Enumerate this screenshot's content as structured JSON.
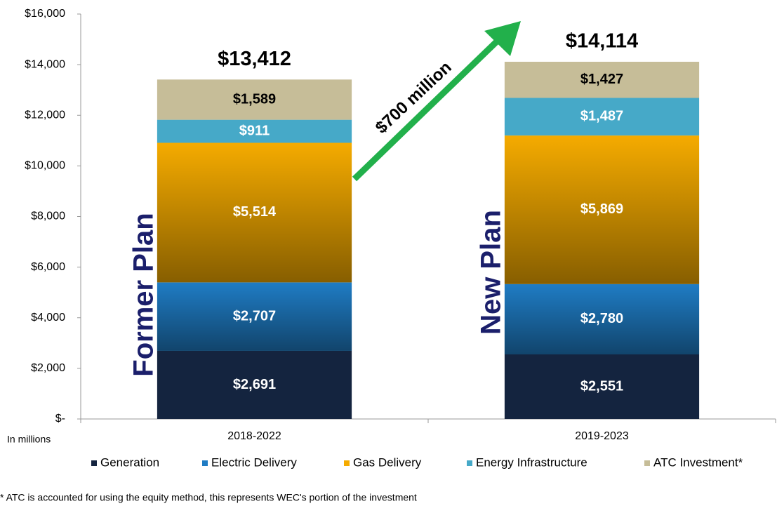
{
  "chart_data": {
    "type": "stacked_bar",
    "categories": [
      "2018-2022",
      "2019-2023"
    ],
    "series": [
      {
        "name": "Generation",
        "color": "#14243f",
        "values": [
          2691,
          2551
        ],
        "value_labels": [
          "$2,691",
          "$2,551"
        ]
      },
      {
        "name": "Electric Delivery",
        "color": "#1f7cc4",
        "values": [
          2707,
          2780
        ],
        "value_labels": [
          "$2,707",
          "$2,780"
        ]
      },
      {
        "name": "Gas Delivery",
        "color": "#f5ab00",
        "values": [
          5514,
          5869
        ],
        "value_labels": [
          "$5,514",
          "$5,869"
        ]
      },
      {
        "name": "Energy Infrastructure",
        "color": "#46a9c8",
        "values": [
          911,
          1487
        ],
        "value_labels": [
          "$911",
          "$1,487"
        ]
      },
      {
        "name": "ATC Investment*",
        "color": "#c6bd98",
        "values": [
          1589,
          1427
        ],
        "value_labels": [
          "$1,589",
          "$1,427"
        ]
      }
    ],
    "totals": {
      "values": [
        13412,
        14114
      ],
      "value_labels": [
        "$13,412",
        "$14,114"
      ]
    },
    "ylim": [
      0,
      16000
    ],
    "yticks": [
      {
        "value": 0,
        "label": "$-"
      },
      {
        "value": 2000,
        "label": "$2,000"
      },
      {
        "value": 4000,
        "label": "$4,000"
      },
      {
        "value": 6000,
        "label": "$6,000"
      },
      {
        "value": 8000,
        "label": "$8,000"
      },
      {
        "value": 10000,
        "label": "$10,000"
      },
      {
        "value": 12000,
        "label": "$12,000"
      },
      {
        "value": 14000,
        "label": "$14,000"
      },
      {
        "value": 16000,
        "label": "$16,000"
      }
    ],
    "annotations": [
      "Former Plan",
      "New Plan",
      "$700 million"
    ],
    "y_axis_note": "In millions",
    "footnote": "* ATC is accounted for using the equity method, this represents WEC's portion of the investment",
    "legend": "bottom"
  }
}
